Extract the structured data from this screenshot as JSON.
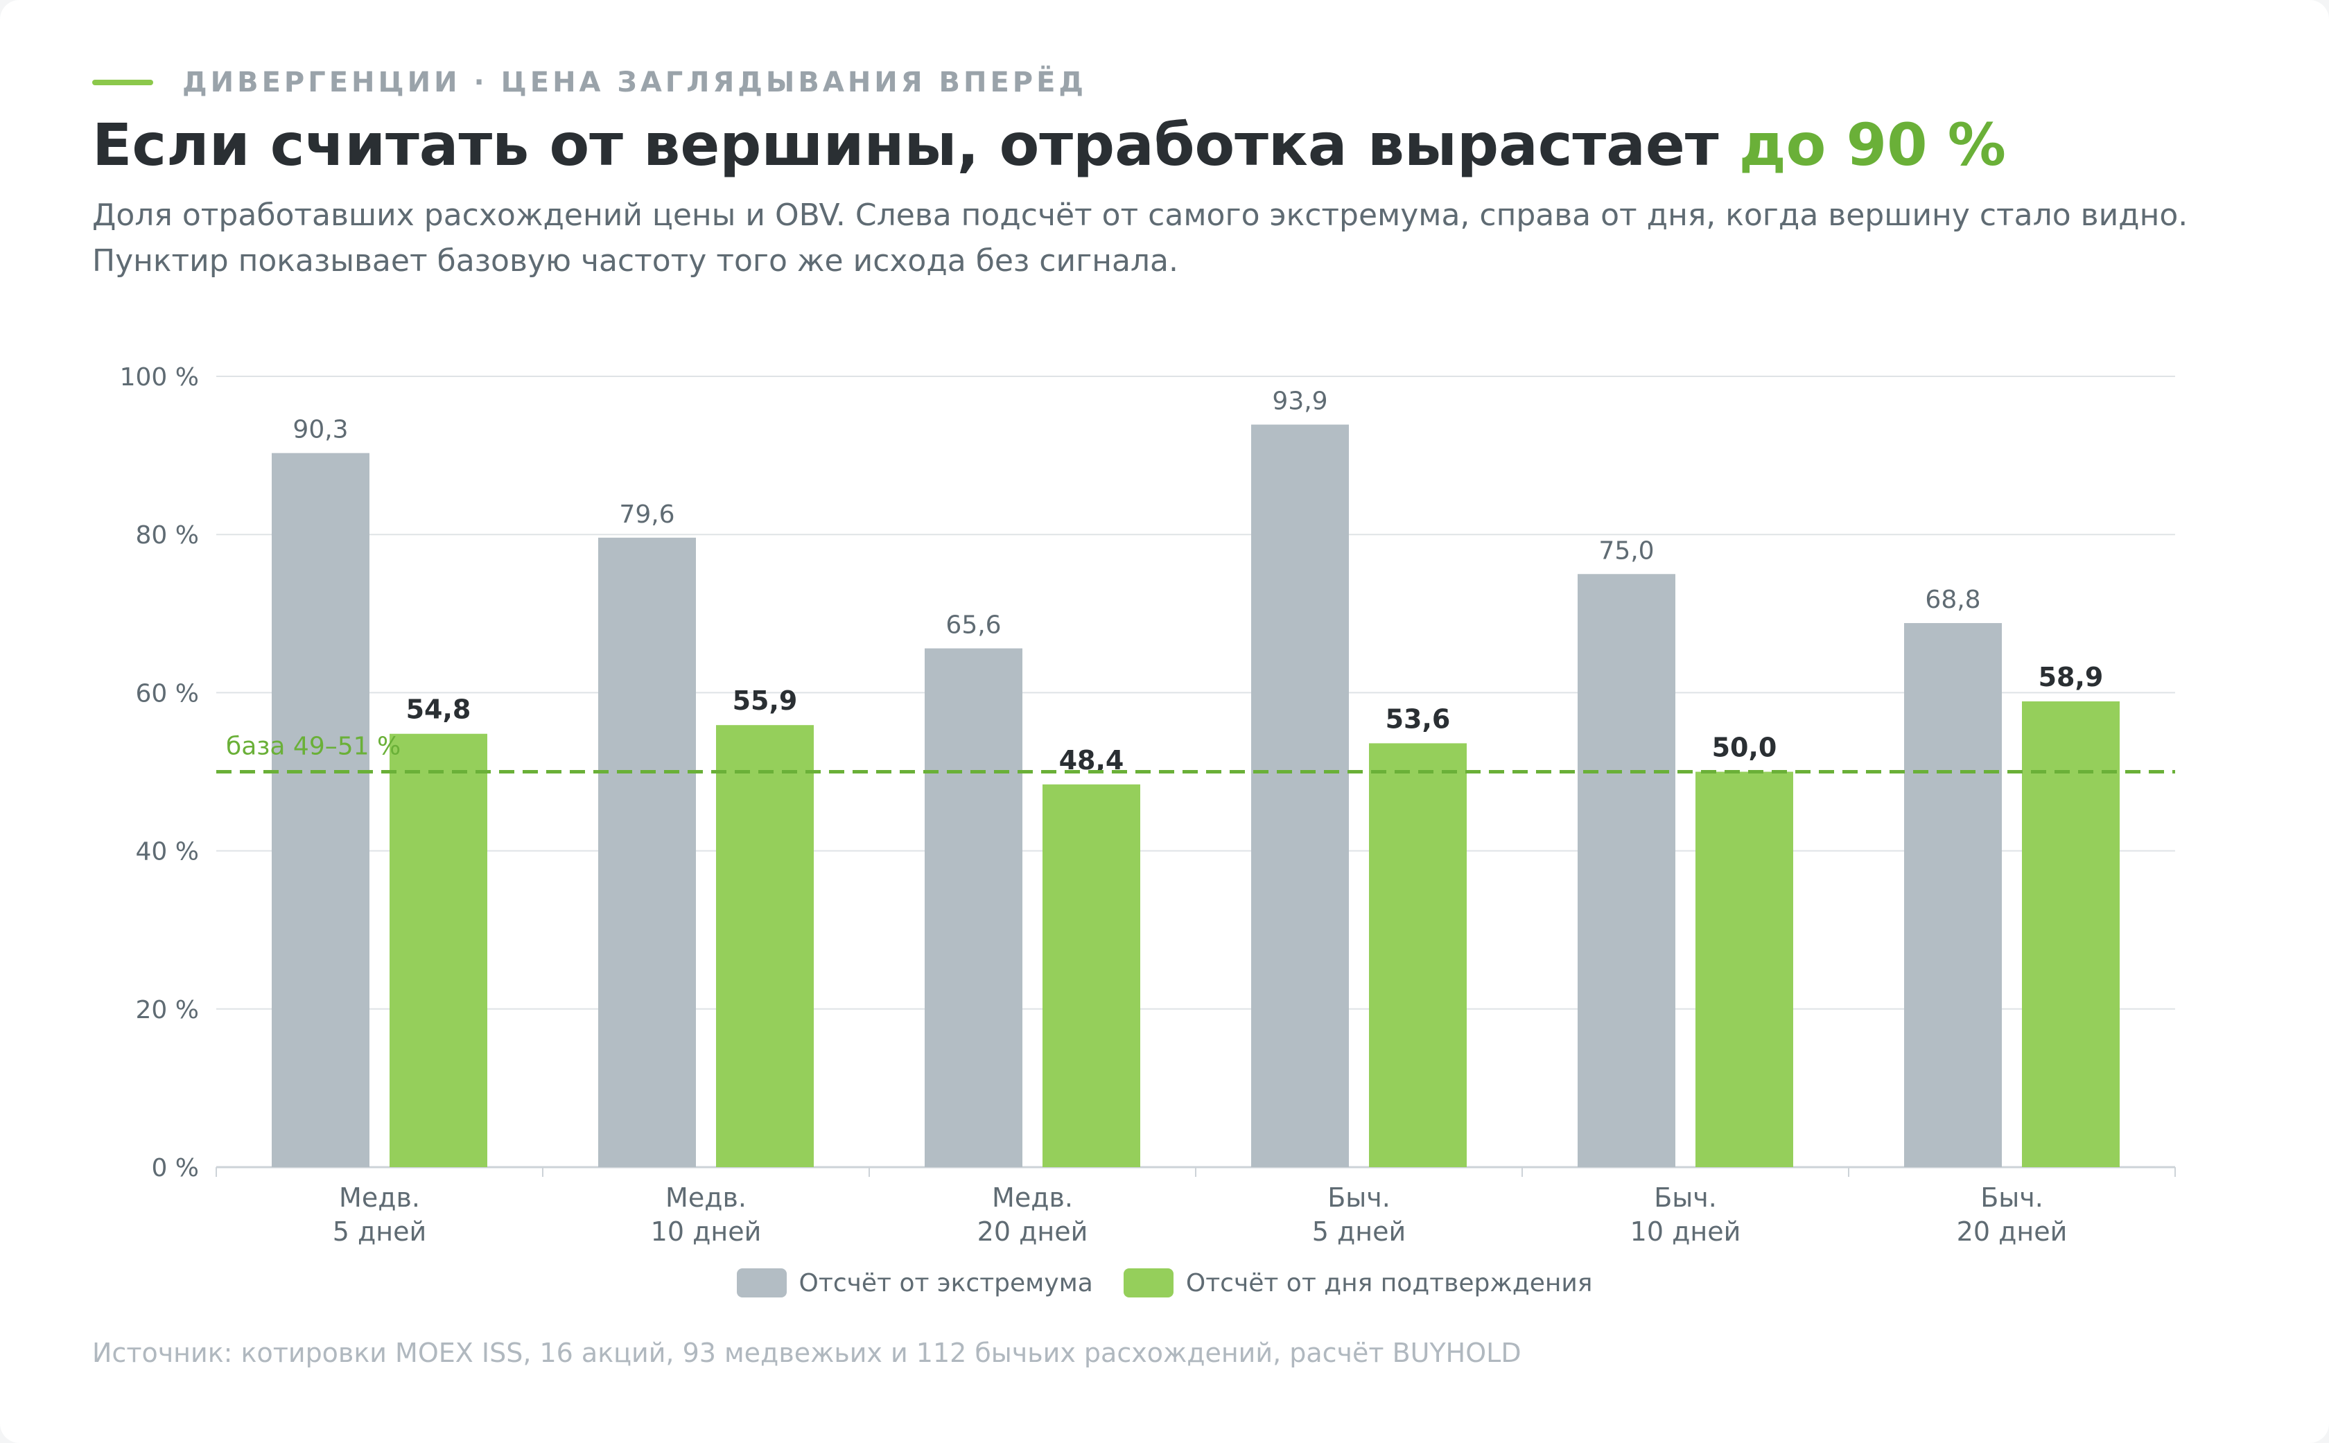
{
  "header": {
    "eyebrow": "ДИВЕРГЕНЦИИ · ЦЕНА ЗАГЛЯДЫВАНИЯ ВПЕРЁД",
    "title": "Если считать от вершины, отработка вырастает",
    "title_accent": "до 90 %",
    "subtitle_line1": "Доля отработавших расхождений цены и OBV. Слева подсчёт от самого экстремума, справа от дня, когда вершину стало видно.",
    "subtitle_line2": "Пунктир показывает базовую частоту того же исхода без сигнала."
  },
  "chart_data": {
    "type": "bar",
    "categories": [
      [
        "Медв.",
        "5 дней"
      ],
      [
        "Медв.",
        "10 дней"
      ],
      [
        "Медв.",
        "20 дней"
      ],
      [
        "Быч.",
        "5 дней"
      ],
      [
        "Быч.",
        "10 дней"
      ],
      [
        "Быч.",
        "20 дней"
      ]
    ],
    "series": [
      {
        "name": "Отсчёт от экстремума",
        "values": [
          90.3,
          79.6,
          65.6,
          93.9,
          75.0,
          68.8
        ],
        "labels": [
          "90,3",
          "79,6",
          "65,6",
          "93,9",
          "75,0",
          "68,8"
        ],
        "color": "#b3bdc4",
        "label_color": "#5f6b73"
      },
      {
        "name": "Отсчёт от дня подтверждения",
        "values": [
          54.8,
          55.9,
          48.4,
          53.6,
          50.0,
          58.9
        ],
        "labels": [
          "54,8",
          "55,9",
          "48,4",
          "53,6",
          "50,0",
          "58,9"
        ],
        "color": "#95cf5b",
        "label_color": "#2a2f33"
      }
    ],
    "ylim": [
      0,
      100
    ],
    "yticks": [
      0,
      20,
      40,
      60,
      80,
      100
    ],
    "ytick_labels": [
      "0 %",
      "20 %",
      "40 %",
      "60 %",
      "80 %",
      "100 %"
    ],
    "baseline": {
      "value": 50,
      "label": "база 49–51 %",
      "color": "#6ab038"
    },
    "grid": true,
    "legend_position": "bottom-center"
  },
  "footer": {
    "source": "Источник: котировки MOEX ISS, 16 акций, 93 медвежьих и 112 бычьих расхождений, расчёт BUYHOLD"
  }
}
